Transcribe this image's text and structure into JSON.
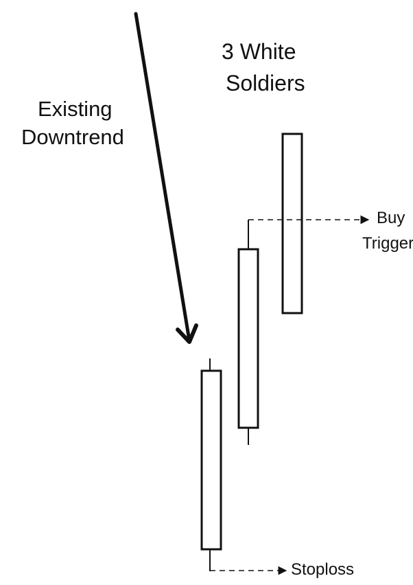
{
  "pattern_title": {
    "line1": "3 White",
    "line2": "Soldiers"
  },
  "trend_label": {
    "line1": "Existing",
    "line2": "Downtrend"
  },
  "buy_trigger": {
    "line1": "Buy",
    "line2": "Trigger"
  },
  "stoploss_label": "Stoploss",
  "candles": [
    {
      "name": "first-white-soldier"
    },
    {
      "name": "second-white-soldier"
    },
    {
      "name": "third-white-soldier"
    }
  ],
  "colors": {
    "ink": "#111111",
    "candle_fill": "#ffffff",
    "background": "#ffffff"
  }
}
